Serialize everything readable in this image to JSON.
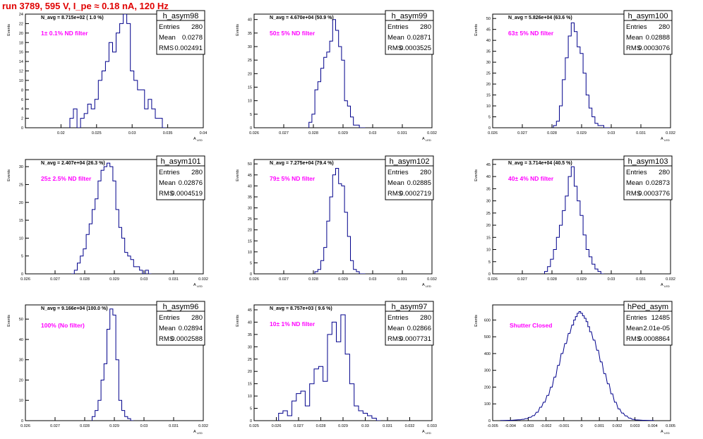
{
  "run_title": "run 3789,   595 V, I_pe ≈ 0.18 nA, 120 Hz",
  "colors": {
    "histogram_line": "#00008b",
    "annotation": "#ff00ff",
    "run_title": "#e00000"
  },
  "stats_labels": {
    "entries": "Entries",
    "mean": "Mean",
    "rms": "RMS"
  },
  "chart_data": [
    {
      "type": "bar",
      "name": "h_asym98",
      "navg": "N_avg = 8.715e+02 ( 1.0 %)",
      "filter": "1± 0.1% ND filter",
      "ylabel": "Events",
      "xlabel": "A",
      "xlabel_sub": "LED",
      "stats": {
        "entries": "280",
        "mean": "0.0278",
        "rms": "0.002491"
      },
      "xlim": [
        0.015,
        0.04
      ],
      "ylim": [
        0,
        24
      ],
      "xticks": [
        0.02,
        0.025,
        0.03,
        0.035,
        0.04
      ],
      "xtick_labels": [
        "0.02",
        "0.025",
        "0.03",
        "0.035",
        "0.04"
      ],
      "yticks": [
        0,
        2,
        4,
        6,
        8,
        10,
        12,
        14,
        16,
        18,
        20,
        22,
        24
      ],
      "bin_width": 0.0005,
      "x": [
        0.0215,
        0.022,
        0.0225,
        0.023,
        0.0235,
        0.024,
        0.0245,
        0.025,
        0.0255,
        0.026,
        0.0265,
        0.027,
        0.0275,
        0.028,
        0.0285,
        0.029,
        0.0295,
        0.03,
        0.0305,
        0.031,
        0.0315,
        0.032,
        0.0325,
        0.033,
        0.0335,
        0.034,
        0.0345
      ],
      "values": [
        2,
        4,
        0,
        2,
        3,
        5,
        4,
        6,
        10,
        12,
        14,
        18,
        16,
        20,
        22,
        24,
        22,
        12,
        10,
        8,
        8,
        4,
        6,
        4,
        2,
        2,
        0
      ]
    },
    {
      "type": "bar",
      "name": "h_asym99",
      "navg": "N_avg = 4.670e+04 (50.9 %)",
      "filter": "50± 5% ND filter",
      "ylabel": "Events",
      "xlabel": "A",
      "xlabel_sub": "LED",
      "stats": {
        "entries": "280",
        "mean": "0.02871",
        "rms": "0.0003525"
      },
      "xlim": [
        0.026,
        0.032
      ],
      "ylim": [
        0,
        42
      ],
      "xticks": [
        0.026,
        0.027,
        0.028,
        0.029,
        0.03,
        0.031,
        0.032
      ],
      "xtick_labels": [
        "0.026",
        "0.027",
        "0.028",
        "0.029",
        "0.03",
        "0.031",
        "0.032"
      ],
      "yticks": [
        0,
        5,
        10,
        15,
        20,
        25,
        30,
        35,
        40
      ],
      "bin_width": 0.0001,
      "x": [
        0.0279,
        0.028,
        0.0281,
        0.0282,
        0.0283,
        0.0284,
        0.0285,
        0.0286,
        0.0287,
        0.0288,
        0.0289,
        0.029,
        0.0291,
        0.0292,
        0.0293,
        0.0294,
        0.0295,
        0.0296,
        0.0297
      ],
      "values": [
        2,
        5,
        14,
        17,
        22,
        26,
        28,
        32,
        40,
        36,
        30,
        25,
        10,
        8,
        4,
        1,
        1,
        0,
        0
      ]
    },
    {
      "type": "bar",
      "name": "h_asym100",
      "navg": "N_avg = 5.826e+04 (63.6 %)",
      "filter": "63± 5% ND filter",
      "ylabel": "Events",
      "xlabel": "A",
      "xlabel_sub": "LED",
      "stats": {
        "entries": "280",
        "mean": "0.02888",
        "rms": "0.0003076"
      },
      "xlim": [
        0.026,
        0.032
      ],
      "ylim": [
        0,
        52
      ],
      "xticks": [
        0.026,
        0.027,
        0.028,
        0.029,
        0.03,
        0.031,
        0.032
      ],
      "xtick_labels": [
        "0.026",
        "0.027",
        "0.028",
        "0.029",
        "0.03",
        "0.031",
        "0.032"
      ],
      "yticks": [
        0,
        5,
        10,
        15,
        20,
        25,
        30,
        35,
        40,
        45,
        50
      ],
      "bin_width": 0.0001,
      "x": [
        0.0281,
        0.0282,
        0.0283,
        0.0284,
        0.0285,
        0.0286,
        0.0287,
        0.0288,
        0.0289,
        0.029,
        0.0291,
        0.0292,
        0.0293,
        0.0294,
        0.0295,
        0.0296,
        0.0297,
        0.0298,
        0.0299
      ],
      "values": [
        1,
        3,
        10,
        22,
        32,
        42,
        48,
        44,
        37,
        34,
        25,
        15,
        9,
        5,
        2,
        1,
        1,
        0,
        0
      ]
    },
    {
      "type": "bar",
      "name": "h_asym101",
      "navg": "N_avg = 2.407e+04 (26.3 %)",
      "filter": "25± 2.5% ND filter",
      "ylabel": "Events",
      "xlabel": "A",
      "xlabel_sub": "LED",
      "stats": {
        "entries": "280",
        "mean": "0.02876",
        "rms": "0.0004519"
      },
      "xlim": [
        0.026,
        0.032
      ],
      "ylim": [
        0,
        32
      ],
      "xticks": [
        0.026,
        0.027,
        0.028,
        0.029,
        0.03,
        0.031,
        0.032
      ],
      "xtick_labels": [
        "0.026",
        "0.027",
        "0.028",
        "0.029",
        "0.03",
        "0.031",
        "0.032"
      ],
      "yticks": [
        0,
        5,
        10,
        15,
        20,
        25,
        30
      ],
      "bin_width": 0.0001,
      "x": [
        0.0276,
        0.0277,
        0.0278,
        0.0279,
        0.028,
        0.0281,
        0.0282,
        0.0283,
        0.0284,
        0.0285,
        0.0286,
        0.0287,
        0.0288,
        0.0289,
        0.029,
        0.0291,
        0.0292,
        0.0293,
        0.0294,
        0.0295,
        0.0296,
        0.0297,
        0.0298,
        0.0299,
        0.03,
        0.0301,
        0.0302
      ],
      "values": [
        0,
        1,
        3,
        5,
        7,
        11,
        14,
        18,
        21,
        26,
        29,
        30,
        31,
        30,
        26,
        18,
        13,
        10,
        6,
        5,
        4,
        2,
        2,
        1,
        0,
        1,
        0
      ]
    },
    {
      "type": "bar",
      "name": "h_asym102",
      "navg": "N_avg = 7.275e+04 (79.4 %)",
      "filter": "79± 5% ND filter",
      "ylabel": "Events",
      "xlabel": "A",
      "xlabel_sub": "LED",
      "stats": {
        "entries": "280",
        "mean": "0.02885",
        "rms": "0.0002719"
      },
      "xlim": [
        0.026,
        0.032
      ],
      "ylim": [
        0,
        52
      ],
      "xticks": [
        0.026,
        0.027,
        0.028,
        0.029,
        0.03,
        0.031,
        0.032
      ],
      "xtick_labels": [
        "0.026",
        "0.027",
        "0.028",
        "0.029",
        "0.03",
        "0.031",
        "0.032"
      ],
      "yticks": [
        0,
        5,
        10,
        15,
        20,
        25,
        30,
        35,
        40,
        45,
        50
      ],
      "bin_width": 0.0001,
      "x": [
        0.0281,
        0.0282,
        0.0283,
        0.0284,
        0.0285,
        0.0286,
        0.0287,
        0.0288,
        0.0289,
        0.029,
        0.0291,
        0.0292,
        0.0293,
        0.0294,
        0.0295,
        0.0296,
        0.0297
      ],
      "values": [
        1,
        2,
        6,
        12,
        24,
        35,
        45,
        48,
        41,
        40,
        28,
        17,
        6,
        2,
        1,
        0,
        0
      ]
    },
    {
      "type": "bar",
      "name": "h_asym103",
      "navg": "N_avg = 3.714e+04 (40.5 %)",
      "filter": "40± 4% ND filter",
      "ylabel": "Events",
      "xlabel": "A",
      "xlabel_sub": "LED",
      "stats": {
        "entries": "280",
        "mean": "0.02873",
        "rms": "0.0003776"
      },
      "xlim": [
        0.026,
        0.032
      ],
      "ylim": [
        0,
        47
      ],
      "xticks": [
        0.026,
        0.027,
        0.028,
        0.029,
        0.03,
        0.031,
        0.032
      ],
      "xtick_labels": [
        "0.026",
        "0.027",
        "0.028",
        "0.029",
        "0.03",
        "0.031",
        "0.032"
      ],
      "yticks": [
        0,
        5,
        10,
        15,
        20,
        25,
        30,
        35,
        40,
        45
      ],
      "bin_width": 0.0001,
      "x": [
        0.0278,
        0.0279,
        0.028,
        0.0281,
        0.0282,
        0.0283,
        0.0284,
        0.0285,
        0.0286,
        0.0287,
        0.0288,
        0.0289,
        0.029,
        0.0291,
        0.0292,
        0.0293,
        0.0294,
        0.0295,
        0.0296,
        0.0297
      ],
      "values": [
        1,
        3,
        6,
        10,
        15,
        20,
        26,
        32,
        40,
        44,
        36,
        30,
        24,
        16,
        10,
        7,
        4,
        2,
        1,
        0
      ]
    },
    {
      "type": "bar",
      "name": "h_asym96",
      "navg": "N_avg = 9.166e+04 (100.0 %)",
      "filter": "100% (No filter)",
      "ylabel": "Events",
      "xlabel": "A",
      "xlabel_sub": "LED",
      "stats": {
        "entries": "280",
        "mean": "0.02894",
        "rms": "0.0002588"
      },
      "xlim": [
        0.026,
        0.032
      ],
      "ylim": [
        0,
        57
      ],
      "xticks": [
        0.026,
        0.027,
        0.028,
        0.029,
        0.03,
        0.031,
        0.032
      ],
      "xtick_labels": [
        "0.026",
        "0.027",
        "0.028",
        "0.029",
        "0.03",
        "0.031",
        "0.032"
      ],
      "yticks": [
        0,
        10,
        20,
        30,
        40,
        50
      ],
      "bin_width": 0.0001,
      "x": [
        0.0283,
        0.0284,
        0.0285,
        0.0286,
        0.0287,
        0.0288,
        0.0289,
        0.029,
        0.0291,
        0.0292,
        0.0293,
        0.0294,
        0.0295,
        0.0296
      ],
      "values": [
        2,
        5,
        10,
        20,
        28,
        45,
        55,
        52,
        30,
        10,
        5,
        2,
        1,
        0
      ]
    },
    {
      "type": "bar",
      "name": "h_asym97",
      "navg": "N_avg = 8.757e+03 ( 9.6 %)",
      "filter": "10± 1% ND filter",
      "ylabel": "Events",
      "xlabel": "A",
      "xlabel_sub": "LED",
      "stats": {
        "entries": "280",
        "mean": "0.02866",
        "rms": "0.0007731"
      },
      "xlim": [
        0.025,
        0.033
      ],
      "ylim": [
        0,
        47
      ],
      "xticks": [
        0.025,
        0.026,
        0.027,
        0.028,
        0.029,
        0.03,
        0.031,
        0.032,
        0.033
      ],
      "xtick_labels": [
        "0.025",
        "0.026",
        "0.027",
        "0.028",
        "0.029",
        "0.03",
        "0.031",
        "0.032",
        "0.033"
      ],
      "yticks": [
        0,
        5,
        10,
        15,
        20,
        25,
        30,
        35,
        40,
        45
      ],
      "bin_width": 0.0002,
      "x": [
        0.0262,
        0.0264,
        0.0266,
        0.0268,
        0.027,
        0.0272,
        0.0274,
        0.0276,
        0.0278,
        0.028,
        0.0282,
        0.0284,
        0.0286,
        0.0288,
        0.029,
        0.0292,
        0.0294,
        0.0296,
        0.0298,
        0.03,
        0.0302,
        0.0304,
        0.0306
      ],
      "values": [
        3,
        4,
        2,
        8,
        11,
        12,
        6,
        15,
        21,
        22,
        16,
        35,
        40,
        32,
        43,
        27,
        15,
        6,
        4,
        3,
        2,
        1,
        0
      ]
    },
    {
      "type": "bar",
      "name": "hPed_asym",
      "navg": "",
      "filter": "Shutter Closed",
      "ylabel": "Events",
      "xlabel": "A",
      "xlabel_sub": "LED",
      "stats": {
        "entries": "12485",
        "mean": "2.01e-05",
        "rms": "0.0008864"
      },
      "xlim": [
        -0.005,
        0.005
      ],
      "ylim": [
        0,
        690
      ],
      "xticks": [
        -0.005,
        -0.004,
        -0.003,
        -0.002,
        -0.001,
        0,
        0.001,
        0.002,
        0.003,
        0.004,
        0.005
      ],
      "xtick_labels": [
        "-0.005",
        "-0.004",
        "-0.003",
        "-0.002",
        "-0.001",
        "0",
        "0.001",
        "0.002",
        "0.003",
        "0.004",
        "0.005"
      ],
      "yticks": [
        0,
        100,
        200,
        300,
        400,
        500,
        600
      ],
      "bin_width": 0.0001,
      "x": [
        -0.0045,
        -0.004,
        -0.0035,
        -0.0033,
        -0.0031,
        -0.0029,
        -0.0027,
        -0.0025,
        -0.0023,
        -0.0021,
        -0.0019,
        -0.0017,
        -0.0015,
        -0.0013,
        -0.0011,
        -0.0009,
        -0.0007,
        -0.0005,
        -0.0004,
        -0.0003,
        -0.0002,
        -0.0001,
        0.0,
        0.0001,
        0.0002,
        0.0003,
        0.0004,
        0.0005,
        0.0007,
        0.0009,
        0.0011,
        0.0013,
        0.0015,
        0.0017,
        0.0019,
        0.0021,
        0.0023,
        0.0025,
        0.0027,
        0.0029,
        0.0031,
        0.0035,
        0.004
      ],
      "values": [
        1,
        2,
        5,
        8,
        12,
        20,
        30,
        50,
        80,
        110,
        150,
        200,
        260,
        330,
        400,
        460,
        520,
        570,
        600,
        620,
        640,
        650,
        640,
        625,
        610,
        590,
        560,
        530,
        480,
        420,
        350,
        280,
        220,
        160,
        110,
        70,
        45,
        28,
        15,
        8,
        4,
        2,
        1
      ]
    }
  ]
}
